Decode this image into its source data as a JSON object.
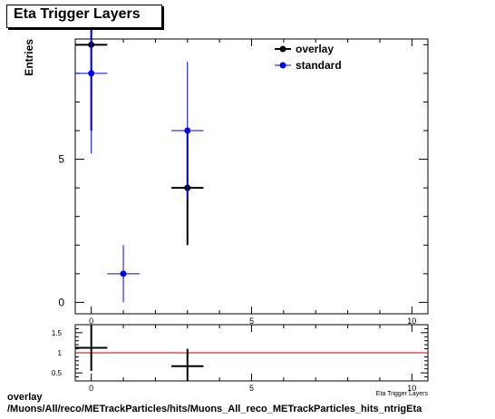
{
  "chart_data": [
    {
      "type": "scatter",
      "title": "Eta Trigger Layers",
      "ylabel": "Entries",
      "xlabel": "Eta Trigger Layers",
      "xlim": [
        -0.5,
        10.5
      ],
      "ylim": [
        -0.4,
        9.2
      ],
      "x_ticks": [
        0,
        5,
        10
      ],
      "y_ticks": [
        0,
        5
      ],
      "legend_position": "top-right",
      "series": [
        {
          "name": "overlay",
          "color": "#000000",
          "points": [
            {
              "x": 0,
              "y": 9,
              "ylo": 6,
              "yhi": 10
            },
            {
              "x": 3,
              "y": 4,
              "ylo": 2,
              "yhi": 6
            }
          ]
        },
        {
          "name": "standard",
          "color": "#0000ff",
          "points": [
            {
              "x": 0,
              "y": 8,
              "ylo": 5.2,
              "yhi": 10
            },
            {
              "x": 1,
              "y": 1,
              "ylo": 0,
              "yhi": 2
            },
            {
              "x": 3,
              "y": 6,
              "ylo": 3.6,
              "yhi": 8.4
            }
          ]
        }
      ]
    },
    {
      "type": "scatter",
      "xlim": [
        -0.5,
        10.5
      ],
      "ylim": [
        0.3,
        1.7
      ],
      "x_ticks": [
        0,
        5,
        10
      ],
      "y_ticks": [
        0.5,
        1,
        1.5
      ],
      "reference_line": 1,
      "reference_color": "#cc0000",
      "series": [
        {
          "color": "#000000",
          "points": [
            {
              "x": 0,
              "y": 1.125,
              "ylo": 0.55,
              "yhi": 1.7
            },
            {
              "x": 3,
              "y": 0.667,
              "ylo": 0.3,
              "yhi": 1.1
            }
          ]
        }
      ]
    }
  ],
  "footer": {
    "line1": "overlay",
    "line2": "/Muons/All/reco/METrackParticles/hits/Muons_All_reco_METrackParticles_hits_ntrigEta"
  }
}
